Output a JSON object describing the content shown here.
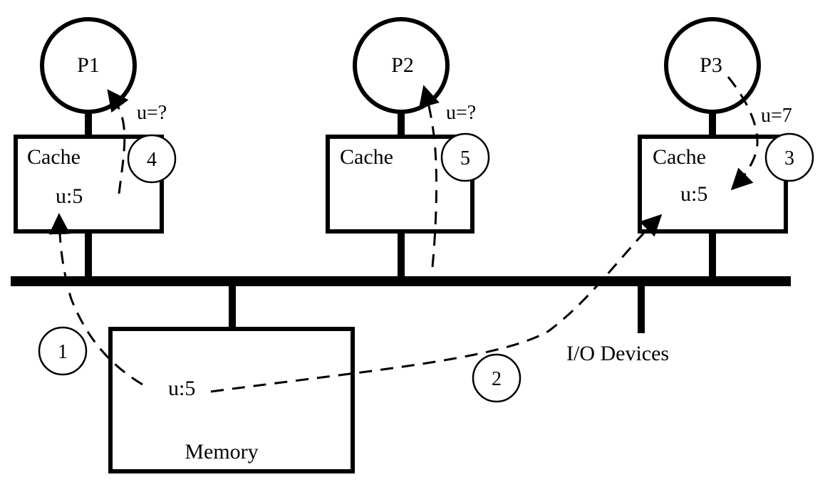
{
  "processors": [
    {
      "label": "P1",
      "cache_label": "Cache",
      "cache_value": "u:5",
      "read_value": "u=?",
      "step": "4"
    },
    {
      "label": "P2",
      "cache_label": "Cache",
      "cache_value": "",
      "read_value": "u=?",
      "step": "5"
    },
    {
      "label": "P3",
      "cache_label": "Cache",
      "cache_value": "u:5",
      "read_value": "u=7",
      "step": "3"
    }
  ],
  "memory": {
    "label": "Memory",
    "value": "u:5"
  },
  "io": {
    "label": "I/O Devices"
  },
  "steps": [
    "1",
    "2"
  ]
}
